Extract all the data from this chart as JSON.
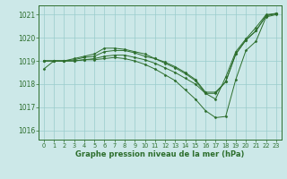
{
  "background_color": "#cce8e8",
  "grid_color": "#99cccc",
  "line_color": "#2d6e2d",
  "marker_color": "#2d6e2d",
  "xlabel": "Graphe pression niveau de la mer (hPa)",
  "ylim": [
    1015.6,
    1021.4
  ],
  "xlim": [
    -0.5,
    23.5
  ],
  "yticks": [
    1016,
    1017,
    1018,
    1019,
    1020,
    1021
  ],
  "xticks": [
    0,
    1,
    2,
    3,
    4,
    5,
    6,
    7,
    8,
    9,
    10,
    11,
    12,
    13,
    14,
    15,
    16,
    17,
    18,
    19,
    20,
    21,
    22,
    23
  ],
  "lines": [
    [
      1018.65,
      1019.0,
      1019.0,
      1019.0,
      1019.05,
      1019.05,
      1019.1,
      1019.15,
      1019.1,
      1019.0,
      1018.85,
      1018.65,
      1018.4,
      1018.15,
      1017.75,
      1017.35,
      1016.85,
      1016.55,
      1016.6,
      1018.2,
      1019.45,
      1019.85,
      1020.9,
      1021.0
    ],
    [
      1019.0,
      1019.0,
      1019.0,
      1019.0,
      1019.05,
      1019.1,
      1019.2,
      1019.25,
      1019.25,
      1019.15,
      1019.05,
      1018.9,
      1018.7,
      1018.5,
      1018.25,
      1018.0,
      1017.6,
      1017.35,
      1018.3,
      1019.4,
      1019.95,
      1020.45,
      1021.0,
      1021.05
    ],
    [
      1019.0,
      1019.0,
      1019.0,
      1019.05,
      1019.15,
      1019.2,
      1019.4,
      1019.45,
      1019.45,
      1019.35,
      1019.2,
      1019.1,
      1018.95,
      1018.75,
      1018.5,
      1018.2,
      1017.65,
      1017.65,
      1018.1,
      1019.3,
      1019.9,
      1020.3,
      1020.95,
      1021.05
    ],
    [
      1019.0,
      1019.0,
      1019.0,
      1019.1,
      1019.2,
      1019.3,
      1019.55,
      1019.55,
      1019.5,
      1019.4,
      1019.3,
      1019.1,
      1018.9,
      1018.7,
      1018.45,
      1018.15,
      1017.6,
      1017.6,
      1018.1,
      1019.3,
      1019.9,
      1020.3,
      1020.95,
      1021.05
    ]
  ],
  "xlabel_fontsize": 6.0,
  "ytick_fontsize": 5.5,
  "xtick_fontsize": 4.8,
  "linewidth": 0.7,
  "markersize": 1.5
}
